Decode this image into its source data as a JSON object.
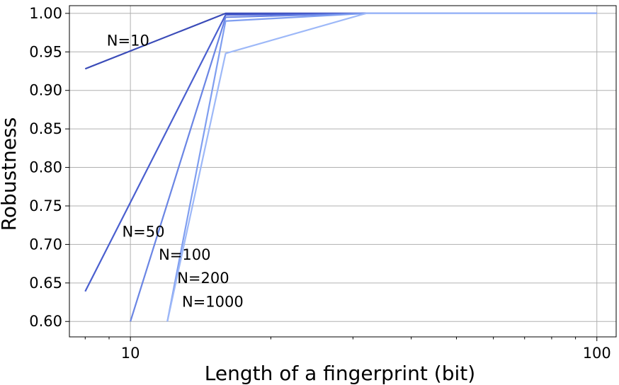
{
  "chart_data": {
    "type": "line",
    "title": "",
    "xlabel": "Length of a fingerprint (bit)",
    "ylabel": "Robustness",
    "xscale": "log",
    "xlim": [
      7.4,
      110
    ],
    "ylim": [
      0.58,
      1.01
    ],
    "grid": true,
    "legend": "none (inline series labels)",
    "xticks": [
      {
        "value": 10,
        "label": "10"
      },
      {
        "value": 100,
        "label": "100"
      }
    ],
    "yticks": [
      {
        "value": 0.6,
        "label": "0.60"
      },
      {
        "value": 0.65,
        "label": "0.65"
      },
      {
        "value": 0.7,
        "label": "0.70"
      },
      {
        "value": 0.75,
        "label": "0.75"
      },
      {
        "value": 0.8,
        "label": "0.80"
      },
      {
        "value": 0.85,
        "label": "0.85"
      },
      {
        "value": 0.9,
        "label": "0.90"
      },
      {
        "value": 0.95,
        "label": "0.95"
      },
      {
        "value": 1.0,
        "label": "1.00"
      }
    ],
    "series": [
      {
        "name": "N=10",
        "color": "#3a4bb8",
        "x": [
          8,
          16,
          32,
          100
        ],
        "y": [
          0.928,
          1.0,
          1.0,
          1.0
        ]
      },
      {
        "name": "N=50",
        "color": "#4a5fcf",
        "x": [
          8,
          16,
          32,
          100
        ],
        "y": [
          0.639,
          0.998,
          1.0,
          1.0
        ]
      },
      {
        "name": "N=100",
        "color": "#6a85e4",
        "x": [
          10,
          16,
          32,
          100
        ],
        "y": [
          0.6,
          0.995,
          1.0,
          1.0
        ]
      },
      {
        "name": "N=200",
        "color": "#7f9ef0",
        "x": [
          12,
          16,
          32,
          100
        ],
        "y": [
          0.6,
          0.99,
          1.0,
          1.0
        ]
      },
      {
        "name": "N=1000",
        "color": "#9db8f8",
        "x": [
          12,
          16,
          32,
          100
        ],
        "y": [
          0.6,
          0.948,
          1.0,
          1.0
        ]
      }
    ]
  }
}
